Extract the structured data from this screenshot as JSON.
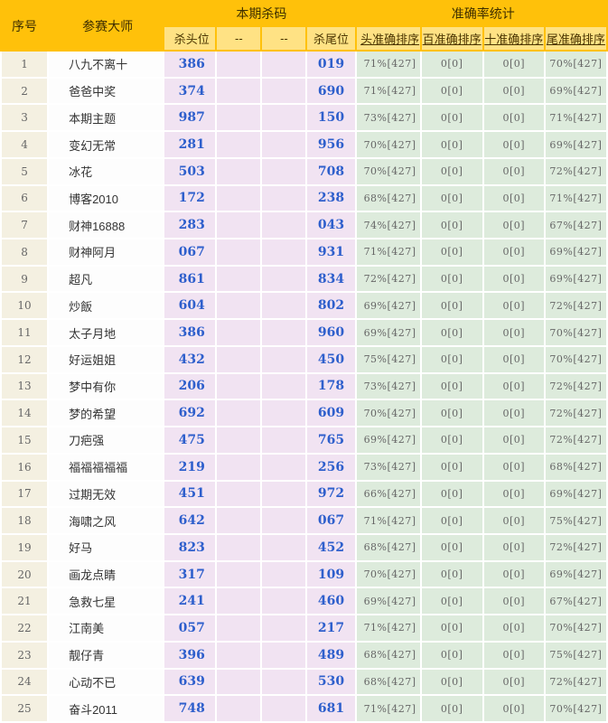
{
  "table": {
    "header": {
      "serial": "序号",
      "master": "参赛大师",
      "kill_group": "本期杀码",
      "accuracy_group": "准确率统计",
      "kill_cols": [
        "杀头位",
        "--",
        "--",
        "杀尾位"
      ],
      "accuracy_cols": [
        "头准确排序",
        "百准确排序",
        "十准确排序",
        "尾准确排序"
      ]
    },
    "rows": [
      {
        "no": "1",
        "name": "八九不离十",
        "kill_head": "386",
        "kill_tail": "019",
        "acc_head": "71%[427]",
        "acc_hundred": "0[0]",
        "acc_ten": "0[0]",
        "acc_tail": "70%[427]"
      },
      {
        "no": "2",
        "name": "爸爸中奖",
        "kill_head": "374",
        "kill_tail": "690",
        "acc_head": "71%[427]",
        "acc_hundred": "0[0]",
        "acc_ten": "0[0]",
        "acc_tail": "69%[427]"
      },
      {
        "no": "3",
        "name": "本期主题",
        "kill_head": "987",
        "kill_tail": "150",
        "acc_head": "73%[427]",
        "acc_hundred": "0[0]",
        "acc_ten": "0[0]",
        "acc_tail": "71%[427]"
      },
      {
        "no": "4",
        "name": "变幻无常",
        "kill_head": "281",
        "kill_tail": "956",
        "acc_head": "70%[427]",
        "acc_hundred": "0[0]",
        "acc_ten": "0[0]",
        "acc_tail": "69%[427]"
      },
      {
        "no": "5",
        "name": "冰花",
        "kill_head": "503",
        "kill_tail": "708",
        "acc_head": "70%[427]",
        "acc_hundred": "0[0]",
        "acc_ten": "0[0]",
        "acc_tail": "72%[427]"
      },
      {
        "no": "6",
        "name": "博客2010",
        "kill_head": "172",
        "kill_tail": "238",
        "acc_head": "68%[427]",
        "acc_hundred": "0[0]",
        "acc_ten": "0[0]",
        "acc_tail": "71%[427]"
      },
      {
        "no": "7",
        "name": "财神16888",
        "kill_head": "283",
        "kill_tail": "043",
        "acc_head": "74%[427]",
        "acc_hundred": "0[0]",
        "acc_ten": "0[0]",
        "acc_tail": "67%[427]"
      },
      {
        "no": "8",
        "name": "财神阿月",
        "kill_head": "067",
        "kill_tail": "931",
        "acc_head": "71%[427]",
        "acc_hundred": "0[0]",
        "acc_ten": "0[0]",
        "acc_tail": "69%[427]"
      },
      {
        "no": "9",
        "name": "超凡",
        "kill_head": "861",
        "kill_tail": "834",
        "acc_head": "72%[427]",
        "acc_hundred": "0[0]",
        "acc_ten": "0[0]",
        "acc_tail": "69%[427]"
      },
      {
        "no": "10",
        "name": "炒飯",
        "kill_head": "604",
        "kill_tail": "802",
        "acc_head": "69%[427]",
        "acc_hundred": "0[0]",
        "acc_ten": "0[0]",
        "acc_tail": "72%[427]"
      },
      {
        "no": "11",
        "name": "太子月地",
        "kill_head": "386",
        "kill_tail": "960",
        "acc_head": "69%[427]",
        "acc_hundred": "0[0]",
        "acc_ten": "0[0]",
        "acc_tail": "70%[427]"
      },
      {
        "no": "12",
        "name": "好运姐姐",
        "kill_head": "432",
        "kill_tail": "450",
        "acc_head": "75%[427]",
        "acc_hundred": "0[0]",
        "acc_ten": "0[0]",
        "acc_tail": "70%[427]"
      },
      {
        "no": "13",
        "name": "梦中有你",
        "kill_head": "206",
        "kill_tail": "178",
        "acc_head": "73%[427]",
        "acc_hundred": "0[0]",
        "acc_ten": "0[0]",
        "acc_tail": "72%[427]"
      },
      {
        "no": "14",
        "name": "梦的希望",
        "kill_head": "692",
        "kill_tail": "609",
        "acc_head": "70%[427]",
        "acc_hundred": "0[0]",
        "acc_ten": "0[0]",
        "acc_tail": "72%[427]"
      },
      {
        "no": "15",
        "name": "刀疤强",
        "kill_head": "475",
        "kill_tail": "765",
        "acc_head": "69%[427]",
        "acc_hundred": "0[0]",
        "acc_ten": "0[0]",
        "acc_tail": "72%[427]"
      },
      {
        "no": "16",
        "name": "福福福福福",
        "kill_head": "219",
        "kill_tail": "256",
        "acc_head": "73%[427]",
        "acc_hundred": "0[0]",
        "acc_ten": "0[0]",
        "acc_tail": "68%[427]"
      },
      {
        "no": "17",
        "name": "过期无效",
        "kill_head": "451",
        "kill_tail": "972",
        "acc_head": "66%[427]",
        "acc_hundred": "0[0]",
        "acc_ten": "0[0]",
        "acc_tail": "69%[427]"
      },
      {
        "no": "18",
        "name": "海啸之风",
        "kill_head": "642",
        "kill_tail": "067",
        "acc_head": "71%[427]",
        "acc_hundred": "0[0]",
        "acc_ten": "0[0]",
        "acc_tail": "75%[427]"
      },
      {
        "no": "19",
        "name": "好马",
        "kill_head": "823",
        "kill_tail": "452",
        "acc_head": "68%[427]",
        "acc_hundred": "0[0]",
        "acc_ten": "0[0]",
        "acc_tail": "72%[427]"
      },
      {
        "no": "20",
        "name": "画龙点睛",
        "kill_head": "317",
        "kill_tail": "109",
        "acc_head": "70%[427]",
        "acc_hundred": "0[0]",
        "acc_ten": "0[0]",
        "acc_tail": "69%[427]"
      },
      {
        "no": "21",
        "name": "急救七星",
        "kill_head": "241",
        "kill_tail": "460",
        "acc_head": "69%[427]",
        "acc_hundred": "0[0]",
        "acc_ten": "0[0]",
        "acc_tail": "67%[427]"
      },
      {
        "no": "22",
        "name": "江南美",
        "kill_head": "057",
        "kill_tail": "217",
        "acc_head": "71%[427]",
        "acc_hundred": "0[0]",
        "acc_ten": "0[0]",
        "acc_tail": "70%[427]"
      },
      {
        "no": "23",
        "name": "靓仔青",
        "kill_head": "396",
        "kill_tail": "489",
        "acc_head": "68%[427]",
        "acc_hundred": "0[0]",
        "acc_ten": "0[0]",
        "acc_tail": "75%[427]"
      },
      {
        "no": "24",
        "name": "心动不已",
        "kill_head": "639",
        "kill_tail": "530",
        "acc_head": "68%[427]",
        "acc_hundred": "0[0]",
        "acc_ten": "0[0]",
        "acc_tail": "72%[427]"
      },
      {
        "no": "25",
        "name": "奋斗2011",
        "kill_head": "748",
        "kill_tail": "681",
        "acc_head": "71%[427]",
        "acc_hundred": "0[0]",
        "acc_ten": "0[0]",
        "acc_tail": "70%[427]"
      }
    ]
  },
  "colors": {
    "header_gold": "#FFC10A",
    "subheader_yellow": "#FFE284",
    "serial_cream": "#F4F0E1",
    "kill_pink": "#F1E3F2",
    "accuracy_green": "#DDEBDC",
    "number_blue": "#2E5FCC"
  }
}
